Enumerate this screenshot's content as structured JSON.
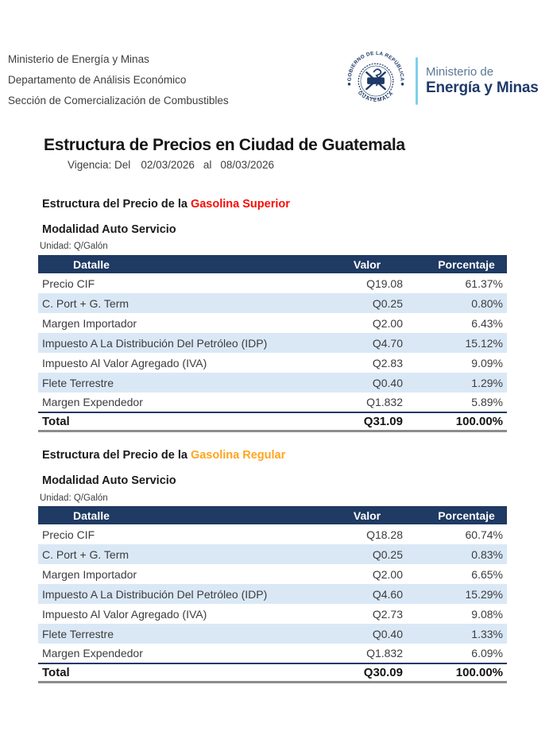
{
  "header": {
    "org_lines": [
      "Ministerio de Energía y Minas",
      "Departamento de Análisis Económico",
      "Sección de Comercialización de Combustibles"
    ],
    "logo": {
      "seal_top_text": "GOBIERNO DE LA REPÚBLICA",
      "seal_bottom_text": "GUATEMALA",
      "wordmark_line1": "Ministerio de",
      "wordmark_line2": "Energía y Minas"
    }
  },
  "title": "Estructura de Precios en Ciudad de Guatemala",
  "validity": {
    "label": "Vigencia: Del",
    "date_from": "02/03/2026",
    "connector": "al",
    "date_to": "08/03/2026"
  },
  "colors": {
    "navy": "#1F3A63",
    "row_alt_blue": "#DAE8F6",
    "superior_red": "#F90D06",
    "regular_orange": "#FFA51E",
    "divider_blue": "#7ECFEC",
    "total_border_gray": "#8C8C8C"
  },
  "tables": [
    {
      "heading_prefix": "Estructura del Precio de la ",
      "product": "Gasolina Superior",
      "product_color": "#F90D06",
      "modality": "Modalidad Auto Servicio",
      "unit": "Unidad: Q/Galón",
      "columns": [
        "Datalle",
        "Valor",
        "Porcentaje"
      ],
      "rows": [
        [
          "Precio CIF",
          "Q19.08",
          "61.37%"
        ],
        [
          "C. Port + G. Term",
          "Q0.25",
          "0.80%"
        ],
        [
          "Margen Importador",
          "Q2.00",
          "6.43%"
        ],
        [
          "Impuesto A La Distribución Del Petróleo (IDP)",
          "Q4.70",
          "15.12%"
        ],
        [
          "Impuesto Al Valor Agregado (IVA)",
          "Q2.83",
          "9.09%"
        ],
        [
          "Flete Terrestre",
          "Q0.40",
          "1.29%"
        ],
        [
          "Margen Expendedor",
          "Q1.832",
          "5.89%"
        ]
      ],
      "total": {
        "label": "Total",
        "value": "Q31.09",
        "percent": "100.00%"
      }
    },
    {
      "heading_prefix": "Estructura del Precio de la ",
      "product": "Gasolina Regular",
      "product_color": "#FFA51E",
      "modality": "Modalidad Auto Servicio",
      "unit": "Unidad: Q/Galón",
      "columns": [
        "Datalle",
        "Valor",
        "Porcentaje"
      ],
      "rows": [
        [
          "Precio CIF",
          "Q18.28",
          "60.74%"
        ],
        [
          "C. Port + G. Term",
          "Q0.25",
          "0.83%"
        ],
        [
          "Margen Importador",
          "Q2.00",
          "6.65%"
        ],
        [
          "Impuesto A La Distribución Del Petróleo (IDP)",
          "Q4.60",
          "15.29%"
        ],
        [
          "Impuesto Al Valor Agregado (IVA)",
          "Q2.73",
          "9.08%"
        ],
        [
          "Flete Terrestre",
          "Q0.40",
          "1.33%"
        ],
        [
          "Margen Expendedor",
          "Q1.832",
          "6.09%"
        ]
      ],
      "total": {
        "label": "Total",
        "value": "Q30.09",
        "percent": "100.00%"
      }
    }
  ]
}
